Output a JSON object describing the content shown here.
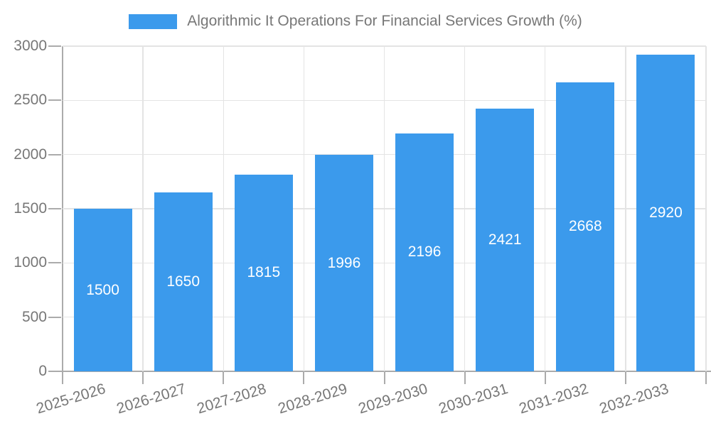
{
  "legend": {
    "label": "Algorithmic It Operations For Financial Services Growth (%)",
    "swatch_color": "#3B9AEC"
  },
  "chart_data": {
    "type": "bar",
    "title": "Algorithmic It Operations For Financial Services Growth (%)",
    "categories": [
      "2025-2026",
      "2026-2027",
      "2027-2028",
      "2028-2029",
      "2029-2030",
      "2030-2031",
      "2031-2032",
      "2032-2033"
    ],
    "values": [
      1500,
      1650,
      1815,
      1996,
      2196,
      2421,
      2668,
      2920
    ],
    "xlabel": "",
    "ylabel": "",
    "ylim": [
      0,
      3000
    ],
    "yticks": [
      0,
      500,
      1000,
      1500,
      2000,
      2500,
      3000
    ],
    "grid": true,
    "legend_position": "top",
    "bar_labels_visible": true,
    "x_label_rotation_deg": -17
  },
  "colors": {
    "background": "#FFFFFF",
    "bar": "#3B9AEC",
    "grid": "#E4E4E4",
    "axis": "#ABABAB",
    "tick_label": "#777777",
    "legend_text": "#777777",
    "bar_label": "#FFFFFF"
  }
}
